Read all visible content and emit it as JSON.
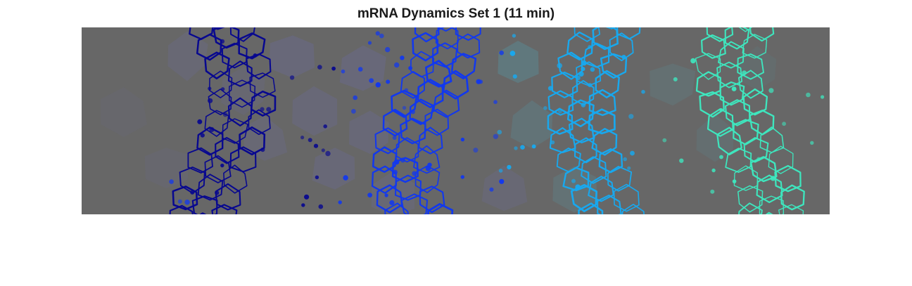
{
  "figure": {
    "title": "mRNA Dynamics Set 1 (11 min)"
  },
  "colors": {
    "background": "#676767",
    "band1": "#08088f",
    "band2": "#1238ee",
    "band3": "#18a8ee",
    "band4": "#3ee6be",
    "shade_purple": "#6a6a9a",
    "shade_teal": "#5a8a94"
  },
  "bands": [
    {
      "name": "band-navy-outline",
      "color_key": "band1"
    },
    {
      "name": "band-blue-outline",
      "color_key": "band2"
    },
    {
      "name": "band-cyan-outline",
      "color_key": "band3"
    },
    {
      "name": "band-aqua-outline",
      "color_key": "band4"
    }
  ]
}
